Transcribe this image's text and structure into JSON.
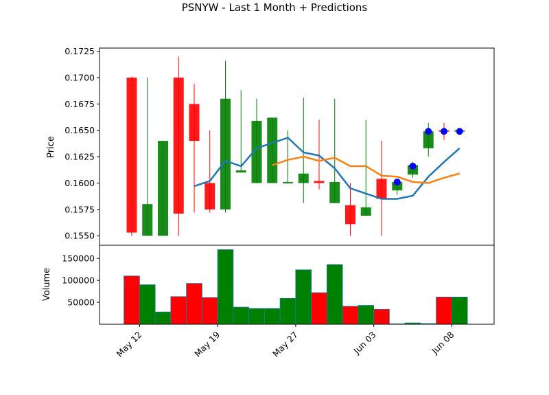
{
  "chart_data": {
    "type": "candlestick",
    "title": "PSNYW - Last 1 Month + Predictions",
    "price_panel": {
      "ylabel": "Price",
      "ylim": [
        0.1541,
        0.1728
      ],
      "yticks": [
        "0.1550",
        "0.1575",
        "0.1600",
        "0.1625",
        "0.1650",
        "0.1675",
        "0.1700",
        "0.1725"
      ],
      "candles": [
        {
          "open": 0.17,
          "close": 0.1553,
          "high": 0.1701,
          "low": 0.155
        },
        {
          "open": 0.155,
          "close": 0.158,
          "high": 0.17,
          "low": 0.155
        },
        {
          "open": 0.155,
          "close": 0.164,
          "high": 0.164,
          "low": 0.155
        },
        {
          "open": 0.17,
          "close": 0.1571,
          "high": 0.172,
          "low": 0.155
        },
        {
          "open": 0.1675,
          "close": 0.164,
          "high": 0.1694,
          "low": 0.1572
        },
        {
          "open": 0.16,
          "close": 0.1575,
          "high": 0.165,
          "low": 0.1572
        },
        {
          "open": 0.1575,
          "close": 0.168,
          "high": 0.1716,
          "low": 0.1572
        },
        {
          "open": 0.161,
          "close": 0.1612,
          "high": 0.1688,
          "low": 0.161
        },
        {
          "open": 0.16,
          "close": 0.1659,
          "high": 0.168,
          "low": 0.16
        },
        {
          "open": 0.16,
          "close": 0.1662,
          "high": 0.1662,
          "low": 0.16
        },
        {
          "open": 0.16,
          "close": 0.1601,
          "high": 0.165,
          "low": 0.16
        },
        {
          "open": 0.16,
          "close": 0.1609,
          "high": 0.1681,
          "low": 0.1581
        },
        {
          "open": 0.1602,
          "close": 0.16,
          "high": 0.166,
          "low": 0.1594
        },
        {
          "open": 0.1581,
          "close": 0.1601,
          "high": 0.168,
          "low": 0.1581
        },
        {
          "open": 0.1579,
          "close": 0.1561,
          "high": 0.16,
          "low": 0.155
        },
        {
          "open": 0.1569,
          "close": 0.1577,
          "high": 0.166,
          "low": 0.1569
        },
        {
          "open": 0.1604,
          "close": 0.1585,
          "high": 0.164,
          "low": 0.155
        },
        {
          "open": 0.1593,
          "close": 0.1601,
          "high": 0.1601,
          "low": 0.1589
        },
        {
          "open": 0.1608,
          "close": 0.1617,
          "high": 0.162,
          "low": 0.1605
        },
        {
          "open": 0.1633,
          "close": 0.1649,
          "high": 0.1657,
          "low": 0.1625
        },
        {
          "open": 0.165,
          "close": 0.1649,
          "high": 0.1657,
          "low": 0.1641
        },
        {
          "open": 0.1649,
          "close": 0.165,
          "high": 0.165,
          "low": 0.1649
        }
      ],
      "ma_blue": [
        null,
        null,
        null,
        null,
        0.1597,
        0.1602,
        0.1621,
        0.1616,
        0.1633,
        0.1638,
        0.1643,
        0.1629,
        0.1626,
        0.1614,
        0.1595,
        0.159,
        0.1585,
        0.1585,
        0.1588,
        0.1606,
        0.162,
        0.1633
      ],
      "ma_orange": [
        null,
        null,
        null,
        null,
        null,
        null,
        null,
        null,
        null,
        0.1617,
        0.1622,
        0.1625,
        0.1621,
        0.1624,
        0.1616,
        0.1616,
        0.1607,
        0.1606,
        0.1601,
        0.16,
        0.1605,
        0.1609
      ],
      "predictions": [
        null,
        null,
        null,
        null,
        null,
        null,
        null,
        null,
        null,
        null,
        null,
        null,
        null,
        null,
        null,
        null,
        null,
        0.1601,
        0.1616,
        0.1649,
        0.1649,
        0.1649
      ]
    },
    "volume_panel": {
      "ylabel": "Volume",
      "ylim": [
        0,
        180000
      ],
      "yticks": [
        "50000",
        "100000",
        "150000"
      ],
      "values": [
        110000,
        90000,
        28000,
        63000,
        93000,
        61000,
        170000,
        39000,
        36000,
        36000,
        59000,
        124000,
        72000,
        136000,
        41000,
        43000,
        34000,
        1000,
        3000,
        1500,
        62000,
        62000
      ]
    },
    "x_ticks": [
      {
        "label": "May 12",
        "index": 0.5
      },
      {
        "label": "May 19",
        "index": 5.5
      },
      {
        "label": "May 27",
        "index": 10.5
      },
      {
        "label": "Jun 03",
        "index": 15.5
      },
      {
        "label": "Jun 08",
        "index": 20.5
      }
    ],
    "colors": {
      "up": "#008000",
      "down": "#ff0000",
      "ma_blue": "#1f77b4",
      "ma_orange": "#ff7f0e",
      "prediction": "#0000ff"
    }
  }
}
